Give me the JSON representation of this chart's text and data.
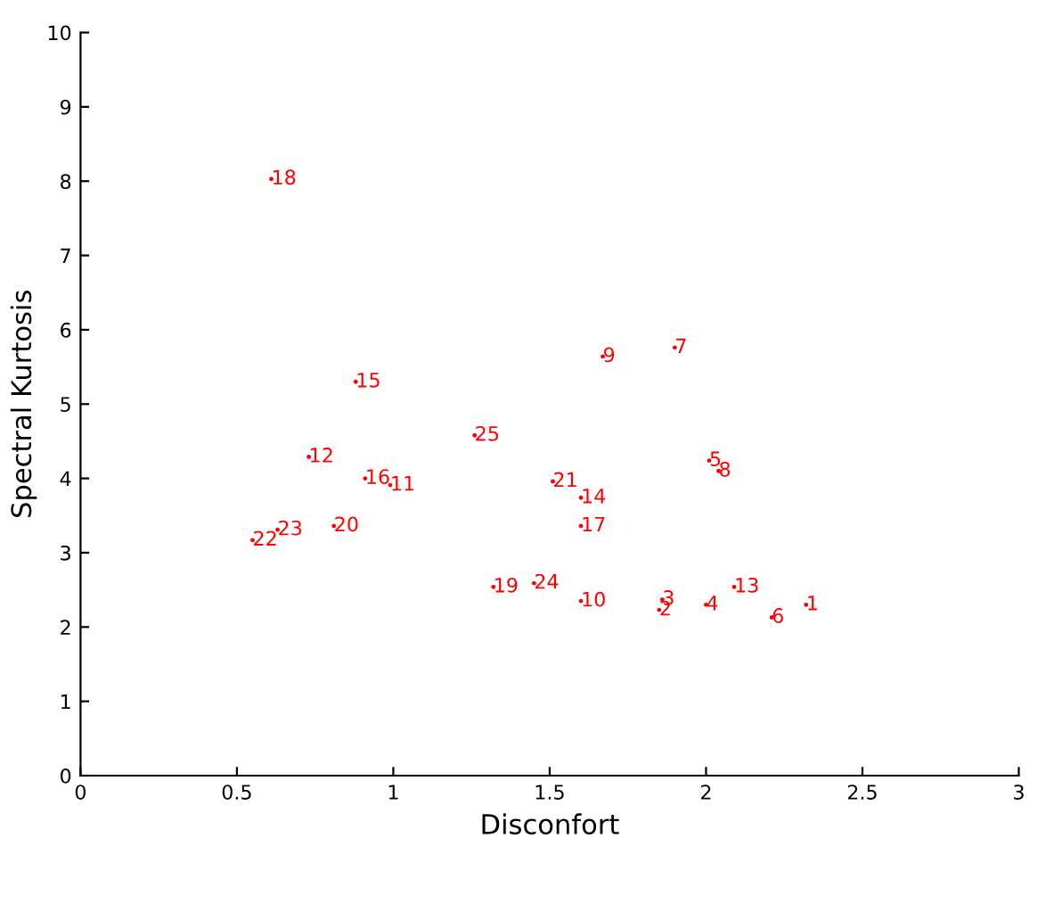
{
  "chart_data": {
    "type": "scatter",
    "xlabel": "Disconfort",
    "ylabel": "Spectral Kurtosis",
    "xlim": [
      0,
      3
    ],
    "ylim": [
      0,
      10
    ],
    "xticks": [
      0,
      0.5,
      1,
      1.5,
      2,
      2.5,
      3
    ],
    "yticks": [
      0,
      1,
      2,
      3,
      4,
      5,
      6,
      7,
      8,
      9,
      10
    ],
    "grid": false,
    "legend": false,
    "marker": "circle",
    "series": [
      {
        "color": "#ff0000",
        "x": [
          2.32,
          1.85,
          1.86,
          2.0,
          2.01,
          2.21,
          1.9,
          2.04,
          1.67,
          1.6,
          0.99,
          0.73,
          2.09,
          1.6,
          0.88,
          0.91,
          1.6,
          0.61,
          1.32,
          0.81,
          1.51,
          0.55,
          0.63,
          1.45,
          1.26
        ],
        "values": [
          2.3,
          2.23,
          2.37,
          2.3,
          4.24,
          2.13,
          5.76,
          4.1,
          5.64,
          2.35,
          3.91,
          4.29,
          2.54,
          3.74,
          5.3,
          4.0,
          3.36,
          8.03,
          2.54,
          3.36,
          3.96,
          3.17,
          3.31,
          2.59,
          4.58
        ]
      }
    ],
    "annotations": [
      {
        "text": "1",
        "x": 2.32,
        "y": 2.3
      },
      {
        "text": "2",
        "x": 1.85,
        "y": 2.23
      },
      {
        "text": "3",
        "x": 1.86,
        "y": 2.37
      },
      {
        "text": "4",
        "x": 2.0,
        "y": 2.3
      },
      {
        "text": "5",
        "x": 2.01,
        "y": 4.24
      },
      {
        "text": "6",
        "x": 2.21,
        "y": 2.13
      },
      {
        "text": "7",
        "x": 1.9,
        "y": 5.76
      },
      {
        "text": "8",
        "x": 2.04,
        "y": 4.1
      },
      {
        "text": "9",
        "x": 1.67,
        "y": 5.64
      },
      {
        "text": "10",
        "x": 1.6,
        "y": 2.35
      },
      {
        "text": "11",
        "x": 0.99,
        "y": 3.91
      },
      {
        "text": "12",
        "x": 0.73,
        "y": 4.29
      },
      {
        "text": "13",
        "x": 2.09,
        "y": 2.54
      },
      {
        "text": "14",
        "x": 1.6,
        "y": 3.74
      },
      {
        "text": "15",
        "x": 0.88,
        "y": 5.3
      },
      {
        "text": "16",
        "x": 0.91,
        "y": 4.0
      },
      {
        "text": "17",
        "x": 1.6,
        "y": 3.36
      },
      {
        "text": "18",
        "x": 0.61,
        "y": 8.03
      },
      {
        "text": "19",
        "x": 1.32,
        "y": 2.54
      },
      {
        "text": "20",
        "x": 0.81,
        "y": 3.36
      },
      {
        "text": "21",
        "x": 1.51,
        "y": 3.96
      },
      {
        "text": "22",
        "x": 0.55,
        "y": 3.17
      },
      {
        "text": "23",
        "x": 0.63,
        "y": 3.31
      },
      {
        "text": "24",
        "x": 1.45,
        "y": 2.59
      },
      {
        "text": "25",
        "x": 1.26,
        "y": 4.58
      }
    ]
  }
}
